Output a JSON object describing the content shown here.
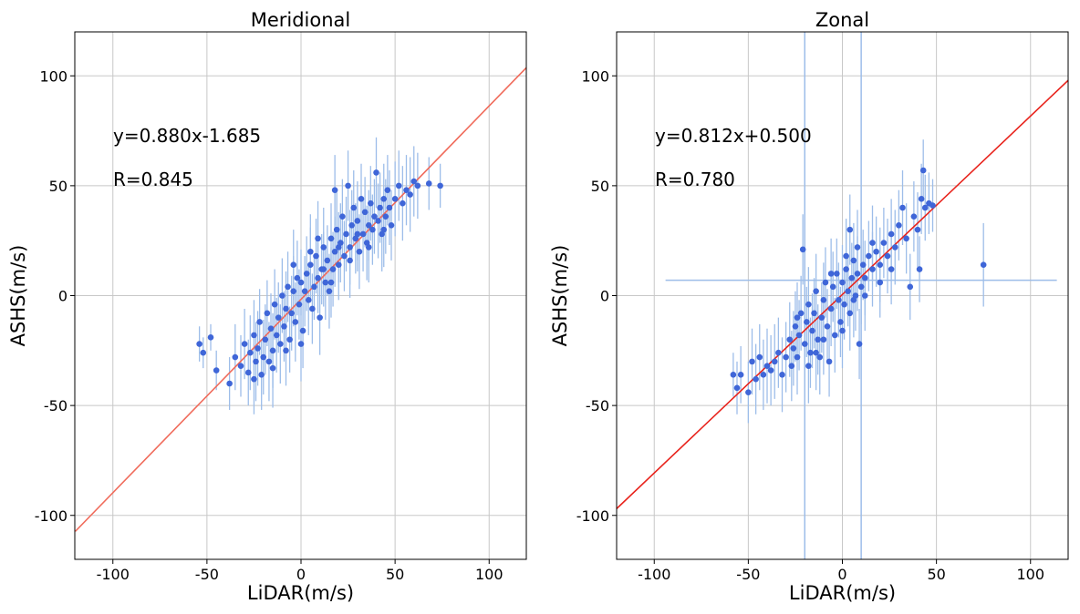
{
  "chart_data": [
    {
      "type": "scatter",
      "title": "Meridional",
      "xlabel": "LiDAR(m/s)",
      "ylabel": "ASHS(m/s)",
      "xlim": [
        -120,
        120
      ],
      "ylim": [
        -120,
        120
      ],
      "xticks": [
        -100,
        -50,
        0,
        50,
        100
      ],
      "yticks": [
        -100,
        -50,
        0,
        50,
        100
      ],
      "grid": true,
      "equation": "y=0.880x-1.685",
      "r_text": "R=0.845",
      "fit": {
        "slope": 0.88,
        "intercept": -1.685,
        "color": "#f06b5b"
      },
      "marker_color": "#3f66d8",
      "errorbar_color": "#9dbde9",
      "points": [
        {
          "x": -54,
          "y": -22,
          "e": 8
        },
        {
          "x": -52,
          "y": -26,
          "e": 7
        },
        {
          "x": -48,
          "y": -19,
          "e": 6
        },
        {
          "x": -45,
          "y": -34,
          "e": 9
        },
        {
          "x": -38,
          "y": -40,
          "e": 12
        },
        {
          "x": -35,
          "y": -28,
          "e": 15
        },
        {
          "x": -32,
          "y": -32,
          "e": 14
        },
        {
          "x": -30,
          "y": -22,
          "e": 16
        },
        {
          "x": -28,
          "y": -35,
          "e": 15
        },
        {
          "x": -27,
          "y": -26,
          "e": 17
        },
        {
          "x": -25,
          "y": -18,
          "e": 16
        },
        {
          "x": -24,
          "y": -30,
          "e": 18
        },
        {
          "x": -23,
          "y": -24,
          "e": 17
        },
        {
          "x": -22,
          "y": -12,
          "e": 15
        },
        {
          "x": -21,
          "y": -36,
          "e": 16
        },
        {
          "x": -20,
          "y": -28,
          "e": 17
        },
        {
          "x": -19,
          "y": -20,
          "e": 16
        },
        {
          "x": -18,
          "y": -8,
          "e": 15
        },
        {
          "x": -17,
          "y": -30,
          "e": 18
        },
        {
          "x": -16,
          "y": -15,
          "e": 16
        },
        {
          "x": -15,
          "y": -25,
          "e": 17
        },
        {
          "x": -14,
          "y": -4,
          "e": 16
        },
        {
          "x": -13,
          "y": -18,
          "e": 17
        },
        {
          "x": -12,
          "y": -10,
          "e": 16
        },
        {
          "x": -11,
          "y": -22,
          "e": 18
        },
        {
          "x": -10,
          "y": 0,
          "e": 17
        },
        {
          "x": -9,
          "y": -14,
          "e": 16
        },
        {
          "x": -8,
          "y": -6,
          "e": 17
        },
        {
          "x": -7,
          "y": 4,
          "e": 16
        },
        {
          "x": -6,
          "y": -20,
          "e": 15
        },
        {
          "x": -5,
          "y": -8,
          "e": 17
        },
        {
          "x": -4,
          "y": 2,
          "e": 16
        },
        {
          "x": -3,
          "y": -12,
          "e": 18
        },
        {
          "x": -2,
          "y": 8,
          "e": 17
        },
        {
          "x": -1,
          "y": -4,
          "e": 16
        },
        {
          "x": 0,
          "y": 6,
          "e": 15
        },
        {
          "x": 1,
          "y": -16,
          "e": 17
        },
        {
          "x": 2,
          "y": 2,
          "e": 16
        },
        {
          "x": 3,
          "y": 10,
          "e": 17
        },
        {
          "x": 4,
          "y": -2,
          "e": 16
        },
        {
          "x": 5,
          "y": 14,
          "e": 17
        },
        {
          "x": 6,
          "y": -6,
          "e": 16
        },
        {
          "x": 7,
          "y": 4,
          "e": 15
        },
        {
          "x": 8,
          "y": 18,
          "e": 17
        },
        {
          "x": 9,
          "y": 8,
          "e": 16
        },
        {
          "x": 10,
          "y": -10,
          "e": 17
        },
        {
          "x": 11,
          "y": 12,
          "e": 16
        },
        {
          "x": 12,
          "y": 22,
          "e": 18
        },
        {
          "x": 13,
          "y": 6,
          "e": 17
        },
        {
          "x": 14,
          "y": 16,
          "e": 16
        },
        {
          "x": 15,
          "y": 2,
          "e": 17
        },
        {
          "x": 16,
          "y": 26,
          "e": 16
        },
        {
          "x": 17,
          "y": 12,
          "e": 17
        },
        {
          "x": 18,
          "y": 20,
          "e": 16
        },
        {
          "x": 19,
          "y": 30,
          "e": 17
        },
        {
          "x": 20,
          "y": 14,
          "e": 16
        },
        {
          "x": 21,
          "y": 24,
          "e": 18
        },
        {
          "x": 22,
          "y": 36,
          "e": 17
        },
        {
          "x": 23,
          "y": 18,
          "e": 16
        },
        {
          "x": 24,
          "y": 28,
          "e": 17
        },
        {
          "x": 25,
          "y": 50,
          "e": 16
        },
        {
          "x": 26,
          "y": 22,
          "e": 17
        },
        {
          "x": 27,
          "y": 32,
          "e": 16
        },
        {
          "x": 28,
          "y": 40,
          "e": 17
        },
        {
          "x": 29,
          "y": 26,
          "e": 16
        },
        {
          "x": 30,
          "y": 34,
          "e": 18
        },
        {
          "x": 31,
          "y": 20,
          "e": 17
        },
        {
          "x": 32,
          "y": 44,
          "e": 16
        },
        {
          "x": 33,
          "y": 28,
          "e": 17
        },
        {
          "x": 34,
          "y": 38,
          "e": 16
        },
        {
          "x": 35,
          "y": 24,
          "e": 17
        },
        {
          "x": 36,
          "y": 32,
          "e": 16
        },
        {
          "x": 37,
          "y": 42,
          "e": 17
        },
        {
          "x": 38,
          "y": 30,
          "e": 16
        },
        {
          "x": 39,
          "y": 36,
          "e": 17
        },
        {
          "x": 40,
          "y": 56,
          "e": 16
        },
        {
          "x": 41,
          "y": 34,
          "e": 17
        },
        {
          "x": 42,
          "y": 40,
          "e": 16
        },
        {
          "x": 43,
          "y": 28,
          "e": 17
        },
        {
          "x": 44,
          "y": 44,
          "e": 16
        },
        {
          "x": 45,
          "y": 36,
          "e": 17
        },
        {
          "x": 46,
          "y": 48,
          "e": 16
        },
        {
          "x": 47,
          "y": 40,
          "e": 17
        },
        {
          "x": 48,
          "y": 32,
          "e": 16
        },
        {
          "x": 50,
          "y": 44,
          "e": 17
        },
        {
          "x": 52,
          "y": 50,
          "e": 16
        },
        {
          "x": 54,
          "y": 42,
          "e": 17
        },
        {
          "x": 56,
          "y": 48,
          "e": 16
        },
        {
          "x": 58,
          "y": 46,
          "e": 17
        },
        {
          "x": 60,
          "y": 52,
          "e": 16
        },
        {
          "x": 62,
          "y": 50,
          "e": 15
        },
        {
          "x": 68,
          "y": 51,
          "e": 12
        },
        {
          "x": 74,
          "y": 50,
          "e": 10
        },
        {
          "x": 5,
          "y": 20,
          "e": 17
        },
        {
          "x": -8,
          "y": -25,
          "e": 16
        },
        {
          "x": 12,
          "y": 12,
          "e": 17
        },
        {
          "x": 20,
          "y": 22,
          "e": 16
        },
        {
          "x": 30,
          "y": 28,
          "e": 17
        },
        {
          "x": -15,
          "y": -33,
          "e": 18
        },
        {
          "x": -25,
          "y": -38,
          "e": 16
        },
        {
          "x": 0,
          "y": -22,
          "e": 17
        },
        {
          "x": 16,
          "y": 6,
          "e": 16
        },
        {
          "x": 26,
          "y": 16,
          "e": 17
        },
        {
          "x": 36,
          "y": 22,
          "e": 16
        },
        {
          "x": 44,
          "y": 30,
          "e": 17
        },
        {
          "x": -4,
          "y": 14,
          "e": 16
        },
        {
          "x": 9,
          "y": 26,
          "e": 17
        },
        {
          "x": 18,
          "y": 48,
          "e": 16
        }
      ]
    },
    {
      "type": "scatter",
      "title": "Zonal",
      "xlabel": "LiDAR(m/s)",
      "ylabel": "ASHS(m/s)",
      "xlim": [
        -120,
        120
      ],
      "ylim": [
        -120,
        120
      ],
      "xticks": [
        -100,
        -50,
        0,
        50,
        100
      ],
      "yticks": [
        -100,
        -50,
        0,
        50,
        100
      ],
      "grid": true,
      "equation": "y=0.812x+0.500",
      "r_text": "R=0.780",
      "fit": {
        "slope": 0.812,
        "intercept": 0.5,
        "color": "#e8231c"
      },
      "marker_color": "#3f66d8",
      "errorbar_color": "#9dbde9",
      "outlier_bars": [
        {
          "orient": "v",
          "at": -20,
          "from": -120,
          "to": 120
        },
        {
          "orient": "v",
          "at": 10,
          "from": -120,
          "to": 120
        },
        {
          "orient": "h",
          "at": 7,
          "from": -94,
          "to": 114
        }
      ],
      "points": [
        {
          "x": -58,
          "y": -36,
          "e": 10
        },
        {
          "x": -56,
          "y": -42,
          "e": 12
        },
        {
          "x": -54,
          "y": -36,
          "e": 13
        },
        {
          "x": -50,
          "y": -44,
          "e": 14
        },
        {
          "x": -48,
          "y": -30,
          "e": 15
        },
        {
          "x": -46,
          "y": -38,
          "e": 16
        },
        {
          "x": -44,
          "y": -28,
          "e": 15
        },
        {
          "x": -42,
          "y": -36,
          "e": 16
        },
        {
          "x": -40,
          "y": -32,
          "e": 17
        },
        {
          "x": -38,
          "y": -34,
          "e": 16
        },
        {
          "x": -36,
          "y": -30,
          "e": 17
        },
        {
          "x": -34,
          "y": -26,
          "e": 16
        },
        {
          "x": -32,
          "y": -36,
          "e": 17
        },
        {
          "x": -30,
          "y": -28,
          "e": 16
        },
        {
          "x": -28,
          "y": -20,
          "e": 17
        },
        {
          "x": -27,
          "y": -32,
          "e": 16
        },
        {
          "x": -26,
          "y": -24,
          "e": 17
        },
        {
          "x": -25,
          "y": -14,
          "e": 16
        },
        {
          "x": -24,
          "y": -28,
          "e": 17
        },
        {
          "x": -23,
          "y": -18,
          "e": 16
        },
        {
          "x": -22,
          "y": -8,
          "e": 17
        },
        {
          "x": -21,
          "y": 21,
          "e": 16
        },
        {
          "x": -20,
          "y": -22,
          "e": 17
        },
        {
          "x": -19,
          "y": -12,
          "e": 16
        },
        {
          "x": -18,
          "y": -4,
          "e": 17
        },
        {
          "x": -17,
          "y": -26,
          "e": 16
        },
        {
          "x": -16,
          "y": -16,
          "e": 17
        },
        {
          "x": -15,
          "y": -8,
          "e": 16
        },
        {
          "x": -14,
          "y": 2,
          "e": 17
        },
        {
          "x": -13,
          "y": -20,
          "e": 16
        },
        {
          "x": -12,
          "y": -28,
          "e": 17
        },
        {
          "x": -11,
          "y": -10,
          "e": 16
        },
        {
          "x": -10,
          "y": -2,
          "e": 17
        },
        {
          "x": -9,
          "y": 6,
          "e": 16
        },
        {
          "x": -8,
          "y": -14,
          "e": 17
        },
        {
          "x": -7,
          "y": -30,
          "e": 16
        },
        {
          "x": -6,
          "y": -6,
          "e": 17
        },
        {
          "x": -5,
          "y": 4,
          "e": 16
        },
        {
          "x": -4,
          "y": -18,
          "e": 17
        },
        {
          "x": -3,
          "y": 10,
          "e": 16
        },
        {
          "x": -2,
          "y": -2,
          "e": 17
        },
        {
          "x": -1,
          "y": -12,
          "e": 16
        },
        {
          "x": 0,
          "y": 6,
          "e": 17
        },
        {
          "x": 1,
          "y": -4,
          "e": 16
        },
        {
          "x": 2,
          "y": 12,
          "e": 17
        },
        {
          "x": 3,
          "y": 2,
          "e": 16
        },
        {
          "x": 4,
          "y": -8,
          "e": 17
        },
        {
          "x": 5,
          "y": 8,
          "e": 16
        },
        {
          "x": 6,
          "y": 16,
          "e": 17
        },
        {
          "x": 7,
          "y": 0,
          "e": 16
        },
        {
          "x": 8,
          "y": 10,
          "e": 17
        },
        {
          "x": 9,
          "y": -22,
          "e": 16
        },
        {
          "x": 10,
          "y": 4,
          "e": 17
        },
        {
          "x": 11,
          "y": 14,
          "e": 16
        },
        {
          "x": 12,
          "y": 8,
          "e": 17
        },
        {
          "x": 14,
          "y": 18,
          "e": 16
        },
        {
          "x": 16,
          "y": 12,
          "e": 17
        },
        {
          "x": 18,
          "y": 20,
          "e": 16
        },
        {
          "x": 20,
          "y": 14,
          "e": 17
        },
        {
          "x": 22,
          "y": 24,
          "e": 16
        },
        {
          "x": 24,
          "y": 18,
          "e": 17
        },
        {
          "x": 26,
          "y": 28,
          "e": 16
        },
        {
          "x": 28,
          "y": 22,
          "e": 17
        },
        {
          "x": 30,
          "y": 32,
          "e": 16
        },
        {
          "x": 32,
          "y": 40,
          "e": 17
        },
        {
          "x": 34,
          "y": 26,
          "e": 16
        },
        {
          "x": 36,
          "y": 4,
          "e": 15
        },
        {
          "x": 38,
          "y": 36,
          "e": 16
        },
        {
          "x": 40,
          "y": 30,
          "e": 17
        },
        {
          "x": 41,
          "y": 12,
          "e": 15
        },
        {
          "x": 42,
          "y": 44,
          "e": 16
        },
        {
          "x": 43,
          "y": 57,
          "e": 14
        },
        {
          "x": 44,
          "y": 40,
          "e": 15
        },
        {
          "x": 46,
          "y": 42,
          "e": 14
        },
        {
          "x": 48,
          "y": 41,
          "e": 12
        },
        {
          "x": 75,
          "y": 14,
          "e": 19
        },
        {
          "x": 2,
          "y": 18,
          "e": 17
        },
        {
          "x": -6,
          "y": 10,
          "e": 16
        },
        {
          "x": 6,
          "y": -2,
          "e": 17
        },
        {
          "x": 12,
          "y": 0,
          "e": 16
        },
        {
          "x": -14,
          "y": -26,
          "e": 17
        },
        {
          "x": -24,
          "y": -10,
          "e": 16
        },
        {
          "x": 16,
          "y": 24,
          "e": 17
        },
        {
          "x": 26,
          "y": 12,
          "e": 16
        },
        {
          "x": 0,
          "y": -16,
          "e": 17
        },
        {
          "x": -10,
          "y": -20,
          "e": 16
        },
        {
          "x": 8,
          "y": 22,
          "e": 17
        },
        {
          "x": 20,
          "y": 6,
          "e": 16
        },
        {
          "x": -18,
          "y": -32,
          "e": 17
        },
        {
          "x": 4,
          "y": 30,
          "e": 16
        }
      ]
    }
  ]
}
